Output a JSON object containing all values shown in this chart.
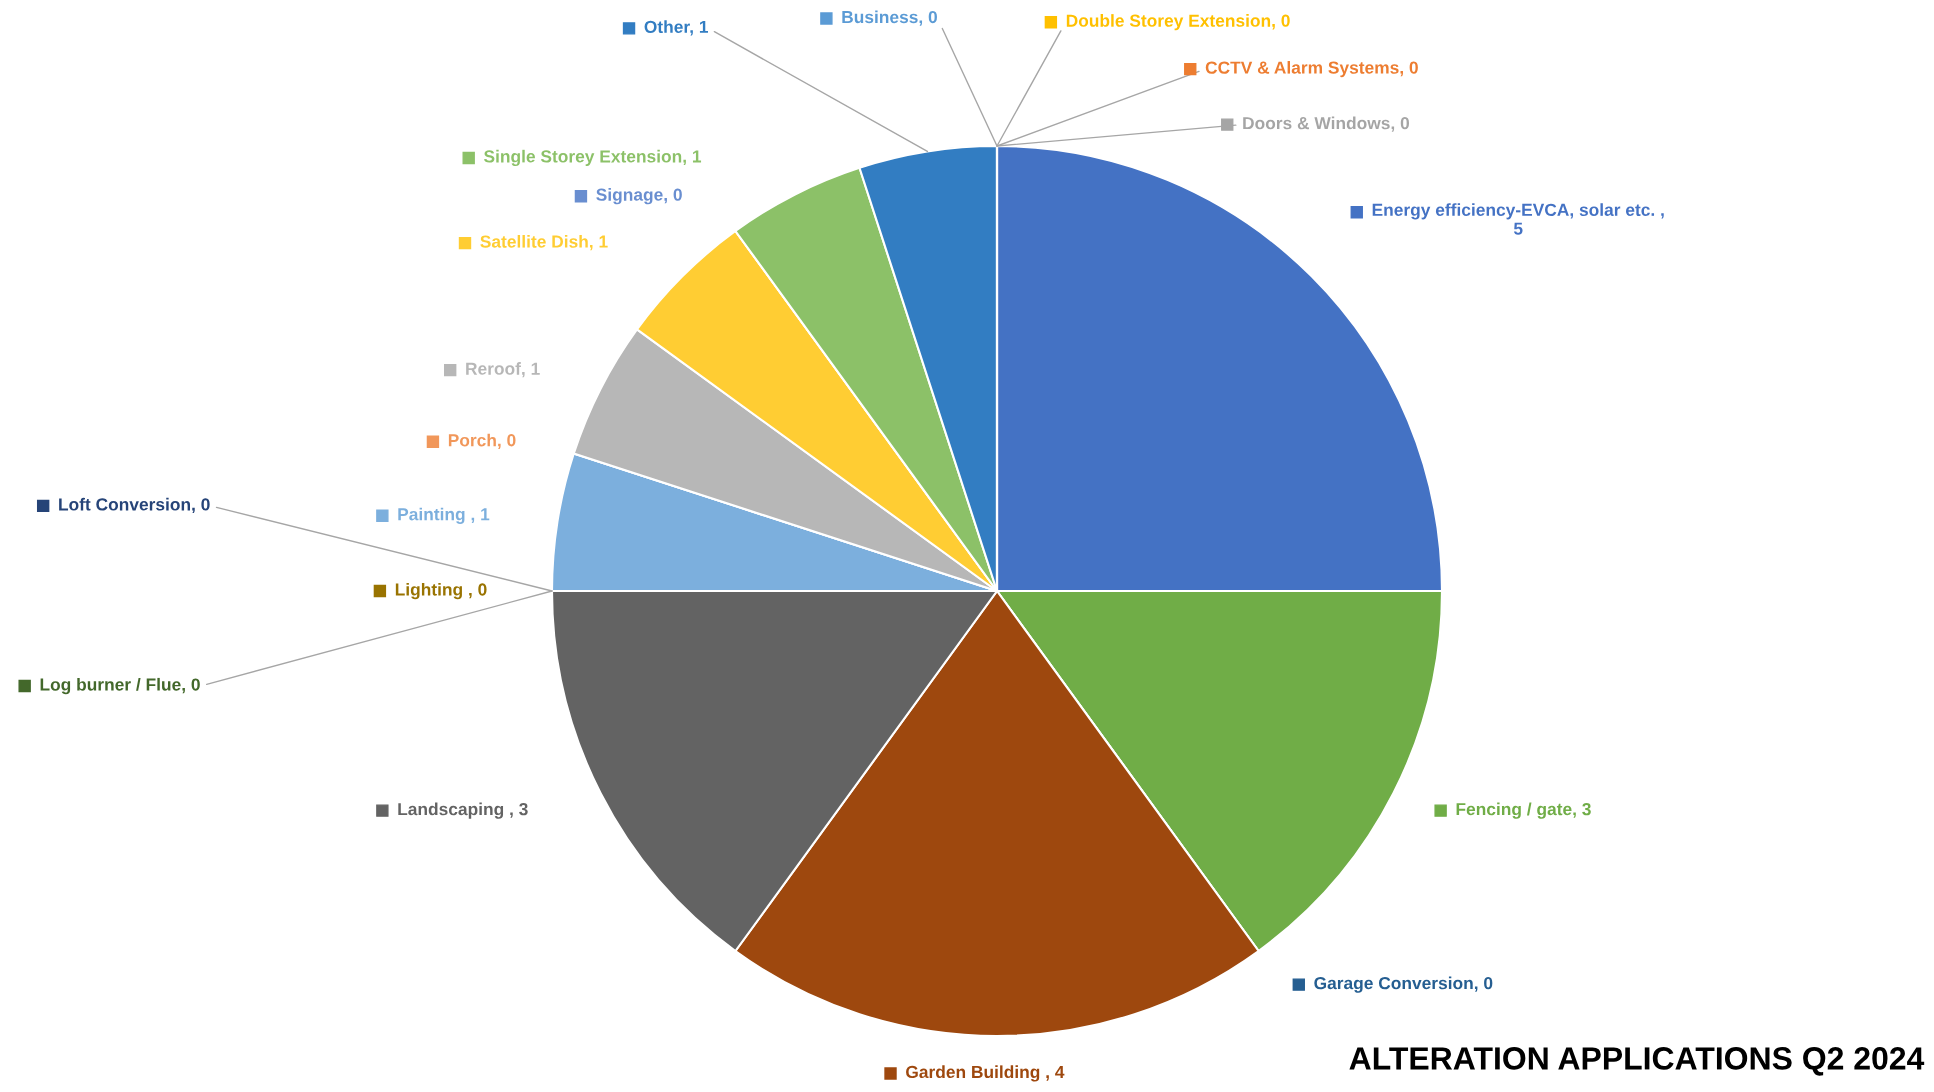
{
  "chart_data": {
    "type": "pie",
    "title": "ALTERATION APPLICATIONS Q2 2024",
    "categories": [
      "Energy efficiency-EVCA, solar etc. , 5",
      "Fencing / gate, 3",
      "Garage Conversion, 0",
      "Garden Building , 4",
      "Landscaping , 3",
      "Log burner / Flue, 0",
      "Lighting , 0",
      "Loft Conversion, 0",
      "Painting , 1",
      "Porch, 0",
      "Reroof, 1",
      "Satellite Dish, 1",
      "Signage, 0",
      "Single Storey Extension, 1",
      "Other, 1",
      "Business, 0",
      "Double Storey Extension, 0",
      "CCTV & Alarm Systems, 0",
      "Doors & Windows, 0"
    ],
    "values": [
      5,
      3,
      0,
      4,
      3,
      0,
      0,
      0,
      1,
      0,
      1,
      1,
      0,
      1,
      1,
      0,
      0,
      0,
      0
    ],
    "colors": [
      "#4472c4",
      "#70ad47",
      "#255e91",
      "#9e480e",
      "#636363",
      "#43682b",
      "#997300",
      "#264478",
      "#7cafdd",
      "#f1975a",
      "#b7b7b7",
      "#ffcd33",
      "#698ed0",
      "#8cc168",
      "#327dc2",
      "#5b9bd5",
      "#ffc000",
      "#ed7d31",
      "#a5a5a5"
    ],
    "legend": "top left"
  }
}
